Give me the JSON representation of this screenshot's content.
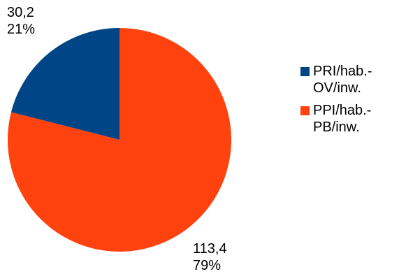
{
  "chart_data": {
    "type": "pie",
    "slices": [
      {
        "name": "PRI/hab.-OV/inw.",
        "value": 30.2,
        "value_label": "30,2",
        "percent_label": "21%",
        "color": "#004586"
      },
      {
        "name": "PPI/hab.-PB/inw.",
        "value": 113.4,
        "value_label": "113,4",
        "percent_label": "79%",
        "color": "#ff420e"
      }
    ],
    "legend_placement": "right"
  },
  "legend": {
    "items": [
      {
        "label": "PRI/hab.-OV/inw.",
        "color": "#004586"
      },
      {
        "label": "PPI/hab.-PB/inw.",
        "color": "#ff420e"
      }
    ]
  }
}
